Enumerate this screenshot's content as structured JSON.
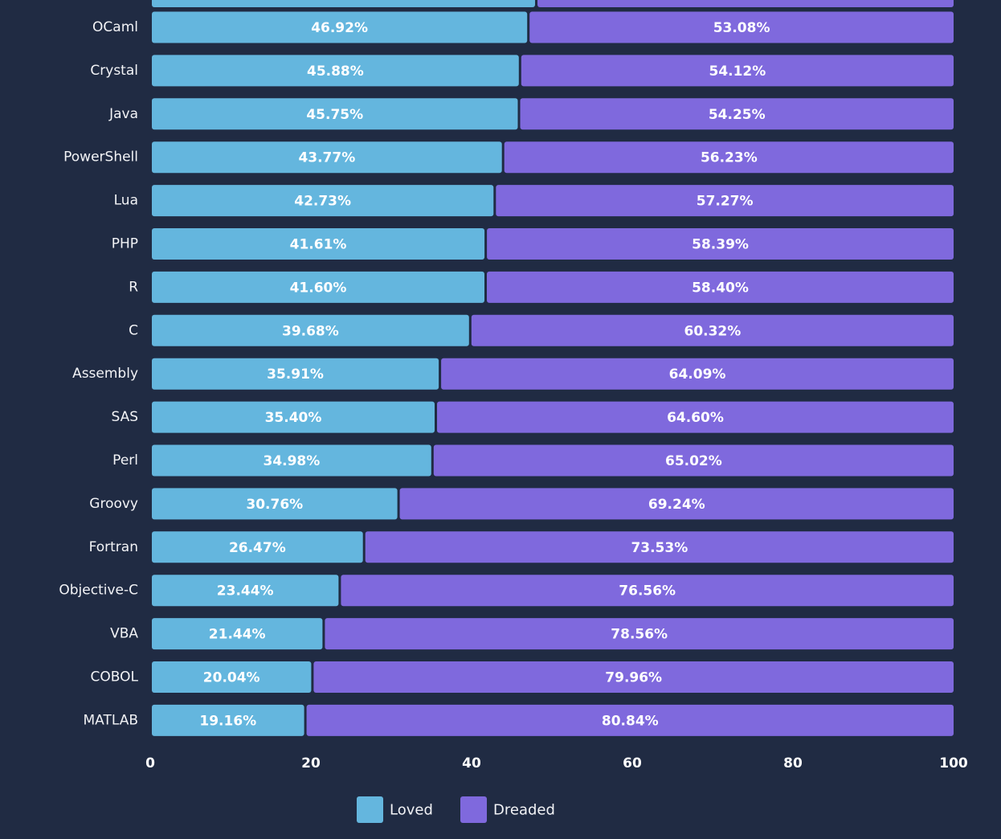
{
  "chart_data": {
    "type": "bar",
    "orientation": "horizontal",
    "stacked": true,
    "categories": [
      "OCaml",
      "Crystal",
      "Java",
      "PowerShell",
      "Lua",
      "PHP",
      "R",
      "C",
      "Assembly",
      "SAS",
      "Perl",
      "Groovy",
      "Fortran",
      "Objective-C",
      "VBA",
      "COBOL",
      "MATLAB"
    ],
    "series": [
      {
        "name": "Loved",
        "color": "#64b6de",
        "values": [
          46.92,
          45.88,
          45.75,
          43.77,
          42.73,
          41.61,
          41.6,
          39.68,
          35.91,
          35.4,
          34.98,
          30.76,
          26.47,
          23.44,
          21.44,
          20.04,
          19.16
        ],
        "labels": [
          "46.92%",
          "45.88%",
          "45.75%",
          "43.77%",
          "42.73%",
          "41.61%",
          "41.60%",
          "39.68%",
          "35.91%",
          "35.40%",
          "34.98%",
          "30.76%",
          "26.47%",
          "23.44%",
          "21.44%",
          "20.04%",
          "19.16%"
        ]
      },
      {
        "name": "Dreaded",
        "color": "#7f69dd",
        "values": [
          53.08,
          54.12,
          54.25,
          56.23,
          57.27,
          58.39,
          58.4,
          60.32,
          64.09,
          64.6,
          65.02,
          69.24,
          73.53,
          76.56,
          78.56,
          79.96,
          80.84
        ],
        "labels": [
          "53.08%",
          "54.12%",
          "54.25%",
          "56.23%",
          "57.27%",
          "58.39%",
          "58.40%",
          "60.32%",
          "64.09%",
          "64.60%",
          "65.02%",
          "69.24%",
          "73.53%",
          "76.56%",
          "78.56%",
          "79.96%",
          "80.84%"
        ]
      }
    ],
    "xlim": [
      0,
      100
    ],
    "xticks": [
      "0",
      "20",
      "40",
      "60",
      "80",
      "100"
    ],
    "legend": {
      "position": "bottom-center",
      "entries": [
        "Loved",
        "Dreaded"
      ]
    },
    "background": "#202b43",
    "text_color": "#f2f3f6"
  }
}
